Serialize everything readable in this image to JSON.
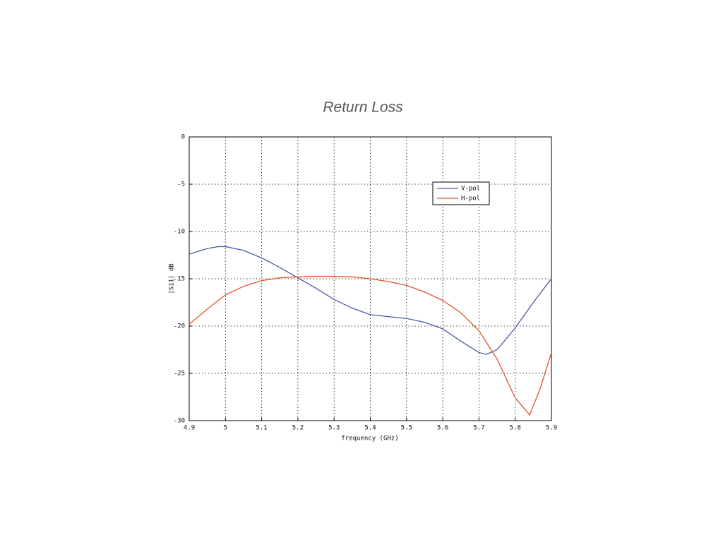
{
  "chart_data": {
    "type": "line",
    "title": "Return Loss",
    "x_label": "frequency (GHz)",
    "y_label": "|S11| dB",
    "xlim": [
      4.9,
      5.9
    ],
    "xticks": [
      4.9,
      5,
      5.1,
      5.2,
      5.3,
      5.4,
      5.5,
      5.6,
      5.7,
      5.8,
      5.9
    ],
    "ylim": [
      -30,
      0
    ],
    "yticks": [
      -30,
      -25,
      -20,
      -15,
      -10,
      -5,
      0
    ],
    "grid": true,
    "legend": "upper right",
    "series": [
      {
        "name": "V-pol",
        "color": "#4a5aa8",
        "x": [
          4.9,
          4.95,
          4.98,
          5.0,
          5.05,
          5.1,
          5.15,
          5.2,
          5.25,
          5.3,
          5.35,
          5.4,
          5.45,
          5.5,
          5.55,
          5.6,
          5.65,
          5.7,
          5.72,
          5.75,
          5.8,
          5.85,
          5.9
        ],
        "values": [
          -12.4,
          -11.8,
          -11.6,
          -11.6,
          -12.0,
          -12.8,
          -13.8,
          -14.9,
          -16.0,
          -17.2,
          -18.1,
          -18.8,
          -19.0,
          -19.2,
          -19.6,
          -20.3,
          -21.6,
          -22.8,
          -23.0,
          -22.5,
          -20.2,
          -17.5,
          -15.0
        ]
      },
      {
        "name": "H-pol",
        "color": "#e0552a",
        "x": [
          4.9,
          4.95,
          5.0,
          5.05,
          5.1,
          5.15,
          5.2,
          5.25,
          5.3,
          5.35,
          5.4,
          5.45,
          5.5,
          5.55,
          5.6,
          5.65,
          5.7,
          5.75,
          5.8,
          5.84,
          5.87,
          5.9
        ],
        "values": [
          -19.8,
          -18.2,
          -16.7,
          -15.8,
          -15.2,
          -14.9,
          -14.8,
          -14.75,
          -14.75,
          -14.8,
          -15.0,
          -15.3,
          -15.7,
          -16.4,
          -17.3,
          -18.6,
          -20.5,
          -23.5,
          -27.6,
          -29.4,
          -26.5,
          -22.8
        ]
      }
    ]
  }
}
